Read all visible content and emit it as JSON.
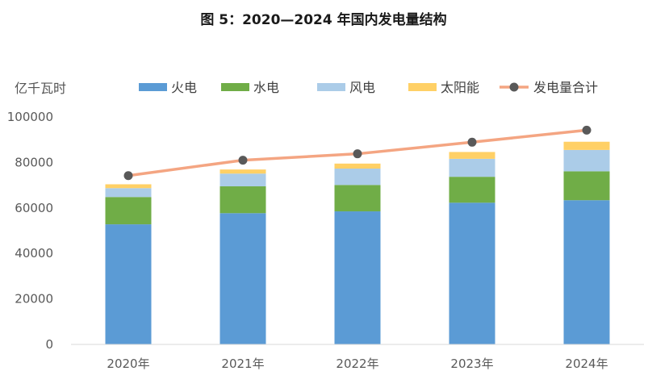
{
  "chart_data": {
    "type": "bar",
    "stacked": true,
    "title": "图 5：2020—2024 年国内发电量结构",
    "ylabel": "亿千瓦时",
    "categories": [
      "2020年",
      "2021年",
      "2022年",
      "2023年",
      "2024年"
    ],
    "ylim": [
      0,
      100000
    ],
    "yticks": [
      "0",
      "20000",
      "40000",
      "60000",
      "80000",
      "100000"
    ],
    "legend_position": "top",
    "series": [
      {
        "name": "火电",
        "values": [
          52800,
          57700,
          58500,
          62300,
          63400
        ],
        "color": "#5B9BD5"
      },
      {
        "name": "水电",
        "values": [
          12000,
          11800,
          11600,
          11400,
          12700
        ],
        "color": "#70AD47"
      },
      {
        "name": "风电",
        "values": [
          3900,
          5600,
          7200,
          7900,
          9400
        ],
        "color": "#ABCCE8"
      },
      {
        "name": "太阳能",
        "values": [
          1700,
          1800,
          2200,
          3000,
          3600
        ],
        "color": "#FFD066"
      }
    ],
    "line_series": {
      "name": "发电量合计",
      "values": [
        74200,
        81000,
        83800,
        88900,
        94200
      ],
      "line_color": "#F4A582",
      "marker_color": "#595959"
    }
  }
}
